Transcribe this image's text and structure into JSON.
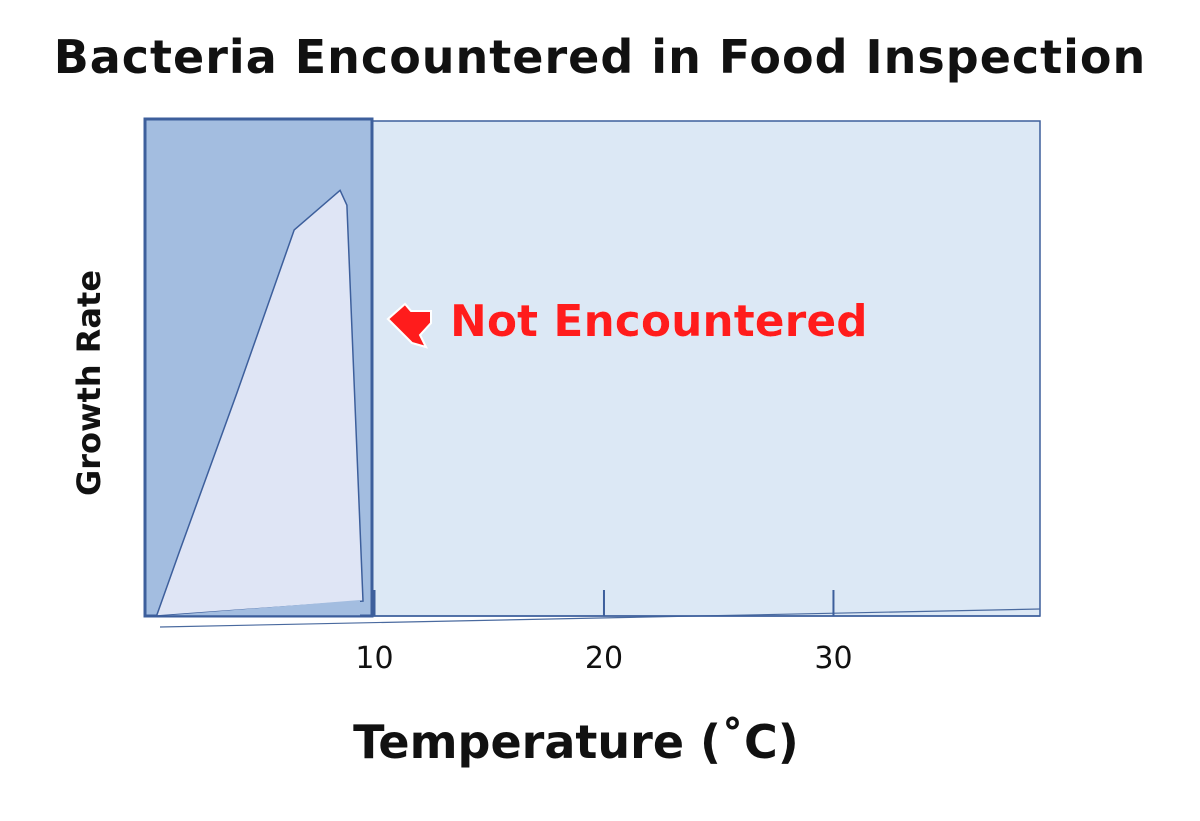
{
  "chart_data": {
    "type": "area",
    "title": "Bacteria Encountered in Food Inspection",
    "xlabel": "Temperature (˚C)",
    "ylabel": "Growth Rate",
    "xlim": [
      0,
      39
    ],
    "ylim": [
      0,
      100
    ],
    "x_ticks": [
      10,
      20,
      30
    ],
    "tick_labels": [
      "10",
      "20",
      "30"
    ],
    "grid": false,
    "highlight_region": {
      "x_range": [
        0,
        10
      ],
      "color": "#a3bde0"
    },
    "plot_background": "#dce8f5",
    "series": [
      {
        "fill": "#dfe5f5",
        "stroke": "#3d5f9c",
        "points": [
          {
            "x": 0.5,
            "y": 0
          },
          {
            "x": 1.5,
            "y": 13
          },
          {
            "x": 4.0,
            "y": 45
          },
          {
            "x": 6.5,
            "y": 78
          },
          {
            "x": 8.5,
            "y": 86
          },
          {
            "x": 8.8,
            "y": 83
          },
          {
            "x": 9.5,
            "y": 3
          }
        ]
      }
    ],
    "annotation": {
      "text": "Not Encountered",
      "color": "#ff1a1a",
      "arrow_icon": "red-arrow-icon"
    }
  }
}
